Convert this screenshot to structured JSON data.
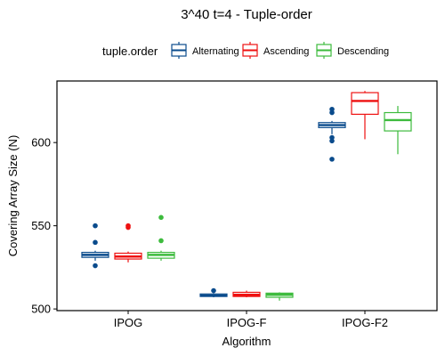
{
  "chart_data": {
    "type": "boxplot",
    "title": "3^40 t=4 - Tuple-order",
    "xlabel": "Algorithm",
    "ylabel": "Covering Array Size (N)",
    "ylim": [
      499,
      637
    ],
    "yticks": [
      500,
      550,
      600
    ],
    "grid": false,
    "legend": {
      "title": "tuple.order",
      "placement": "top",
      "entries": [
        "Alternating",
        "Ascending",
        "Descending"
      ]
    },
    "categories": [
      "IPOG",
      "IPOG-F",
      "IPOG-F2"
    ],
    "series": [
      {
        "name": "Alternating",
        "color": "#0a4b8c",
        "boxes": [
          {
            "category": "IPOG",
            "whisker_low": 529,
            "q1": 531,
            "median": 532.5,
            "q3": 534,
            "whisker_high": 535,
            "outliers": [
              526,
              540,
              550
            ]
          },
          {
            "category": "IPOG-F",
            "whisker_low": 507,
            "q1": 507.5,
            "median": 508,
            "q3": 509,
            "whisker_high": 509.5,
            "outliers": [
              511
            ]
          },
          {
            "category": "IPOG-F2",
            "whisker_low": 605,
            "q1": 609,
            "median": 610.5,
            "q3": 612,
            "whisker_high": 613,
            "outliers": [
              590,
              601,
              603,
              618,
              620
            ]
          }
        ]
      },
      {
        "name": "Ascending",
        "color": "#ee1111",
        "boxes": [
          {
            "category": "IPOG",
            "whisker_low": 528,
            "q1": 530,
            "median": 531.5,
            "q3": 533.5,
            "whisker_high": 534.5,
            "outliers": [
              549,
              550
            ]
          },
          {
            "category": "IPOG-F",
            "whisker_low": 507,
            "q1": 507.5,
            "median": 508.5,
            "q3": 510,
            "whisker_high": 511,
            "outliers": []
          },
          {
            "category": "IPOG-F2",
            "whisker_low": 602,
            "q1": 617,
            "median": 625,
            "q3": 630,
            "whisker_high": 631,
            "outliers": []
          }
        ]
      },
      {
        "name": "Descending",
        "color": "#3dbb3d",
        "boxes": [
          {
            "category": "IPOG",
            "whisker_low": 529,
            "q1": 530.5,
            "median": 532.5,
            "q3": 534,
            "whisker_high": 535,
            "outliers": [
              541,
              555
            ]
          },
          {
            "category": "IPOG-F",
            "whisker_low": 505,
            "q1": 507,
            "median": 508.5,
            "q3": 509.5,
            "whisker_high": 510,
            "outliers": []
          },
          {
            "category": "IPOG-F2",
            "whisker_low": 593,
            "q1": 607,
            "median": 613.5,
            "q3": 618,
            "whisker_high": 622,
            "outliers": []
          }
        ]
      }
    ]
  }
}
